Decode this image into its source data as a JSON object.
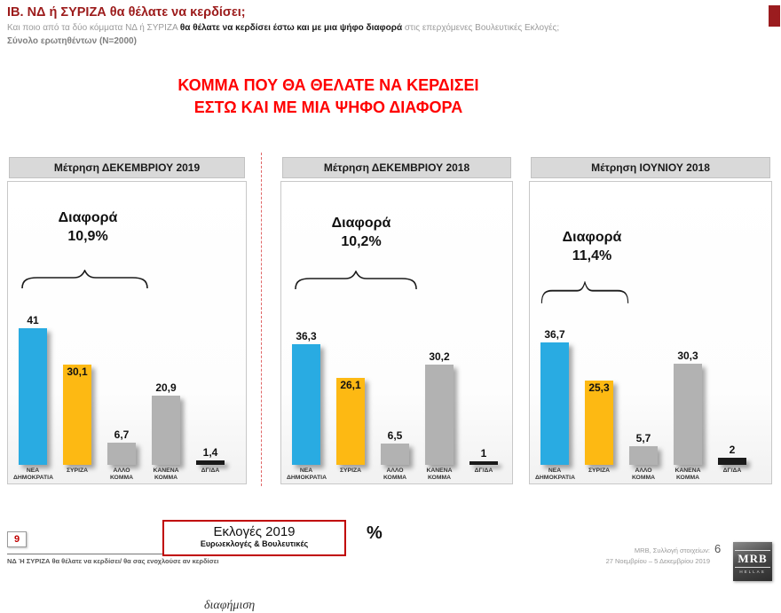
{
  "header": {
    "prefix": "ΙΒ.",
    "title": "ΝΔ  ή ΣΥΡΙΖΑ θα θέλατε να κερδίσει;",
    "subtitle_pre": "Και ποιο από τα δύο κόμματα ΝΔ ή ΣΥΡΙΖΑ ",
    "subtitle_bold": "θα θέλατε να κερδίσει έστω και με μια ψήφο διαφορά",
    "subtitle_post": " στις επερχόμενες Βουλευτικές Εκλογές;",
    "sample": "Σύνολο ερωτηθέντων (N=2000)"
  },
  "main_title": {
    "line1": "ΚΟΜΜΑ ΠΟΥ ΘΑ ΘΕΛΑΤΕ ΝΑ ΚΕΡΔΙΣΕΙ",
    "line2": "ΕΣΤΩ ΚΑΙ ΜΕ ΜΙΑ ΨΗΦΟ ΔΙΑΦΟΡΑ"
  },
  "chart_data": [
    {
      "type": "bar",
      "title": "Μέτρηση ΔΕΚΕΜΒΡΙΟΥ 2019",
      "diff_label": "Διαφορά",
      "diff_value": "10,9%",
      "unit": "%",
      "ylim": [
        0,
        45
      ],
      "categories": [
        "ΝΕΑ ΔΗΜΟΚΡΑΤΙΑ",
        "ΣΥΡΙΖΑ",
        "ΑΛΛΟ ΚΟΜΜΑ",
        "ΚΑΝΕΝΑ ΚΟΜΜΑ",
        "ΔΓ/ΔΑ"
      ],
      "values": [
        41,
        30.1,
        6.7,
        20.9,
        1.4
      ],
      "value_labels": [
        "41",
        "30,1",
        "6,7",
        "20,9",
        "1,4"
      ],
      "bar_colors": [
        "#29abe2",
        "#fdb913",
        "#b2b2b2",
        "#b2b2b2",
        "#1a1a1a"
      ]
    },
    {
      "type": "bar",
      "title": "Μέτρηση ΔΕΚΕΜΒΡΙΟΥ 2018",
      "diff_label": "Διαφορά",
      "diff_value": "10,2%",
      "unit": "%",
      "ylim": [
        0,
        45
      ],
      "categories": [
        "ΝΕΑ ΔΗΜΟΚΡΑΤΙΑ",
        "ΣΥΡΙΖΑ",
        "ΑΛΛΟ ΚΟΜΜΑ",
        "ΚΑΝΕΝΑ ΚΟΜΜΑ",
        "ΔΓ/ΔΑ"
      ],
      "values": [
        36.3,
        26.1,
        6.5,
        30.2,
        1
      ],
      "value_labels": [
        "36,3",
        "26,1",
        "6,5",
        "30,2",
        "1"
      ],
      "bar_colors": [
        "#29abe2",
        "#fdb913",
        "#b2b2b2",
        "#b2b2b2",
        "#1a1a1a"
      ]
    },
    {
      "type": "bar",
      "title": "Μέτρηση ΙΟΥΝΙΟΥ 2018",
      "diff_label": "Διαφορά",
      "diff_value": "11,4%",
      "unit": "%",
      "ylim": [
        0,
        45
      ],
      "categories": [
        "ΝΕΑ ΔΗΜΟΚΡΑΤΙΑ",
        "ΣΥΡΙΖΑ",
        "ΑΛΛΟ ΚΟΜΜΑ",
        "ΚΑΝΕΝΑ ΚΟΜΜΑ",
        "ΔΓ/ΔΑ"
      ],
      "values": [
        36.7,
        25.3,
        5.7,
        30.3,
        2
      ],
      "value_labels": [
        "36,7",
        "25,3",
        "5,7",
        "30,3",
        "2"
      ],
      "bar_colors": [
        "#29abe2",
        "#fdb913",
        "#b2b2b2",
        "#b2b2b2",
        "#1a1a1a"
      ]
    }
  ],
  "footer": {
    "page_number": "9",
    "note": "ΝΔ Ή ΣΥΡΙΖΑ θα θέλατε να κερδίσει/ θα σας ενοχλούσε αν κερδίσει",
    "elections_title": "Εκλογές 2019",
    "elections_subtitle": "Ευρωεκλογές & Βουλευτικές",
    "unit": "%",
    "source_label": "MRB, Συλλογή στοιχείων:",
    "source_dates": "27 Νοεμβρίου – 5 Δεκεμβρίου 2019",
    "slide_number": "6",
    "logo_text": "MRB",
    "logo_subtext": "HELLAS",
    "partial_bottom_text": "διαφήμιση"
  },
  "colors": {
    "nd_blue": "#29abe2",
    "syriza_yellow": "#fdb913",
    "neutral_gray": "#b2b2b2",
    "dk_black": "#1a1a1a",
    "accent_red": "#ff0000",
    "header_dark_red": "#9c1b1b"
  }
}
